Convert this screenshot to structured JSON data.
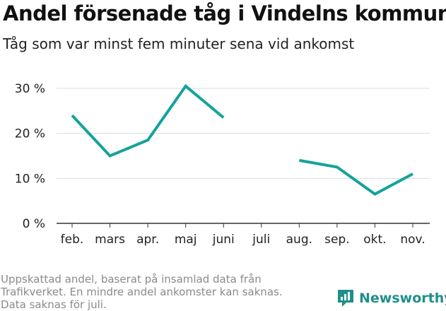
{
  "chart_data": {
    "type": "line",
    "title": "Andel försenade tåg i Vindelns kommun",
    "subtitle": "Tåg som var minst fem minuter sena vid ankomst",
    "categories": [
      "feb.",
      "mars",
      "apr.",
      "maj",
      "juni",
      "juli",
      "aug.",
      "sep.",
      "okt.",
      "nov."
    ],
    "series": [
      {
        "values": [
          24,
          15,
          18.5,
          30.5,
          23.5,
          null,
          14,
          12.5,
          6.5,
          11
        ]
      }
    ],
    "ylim": [
      0,
      30
    ],
    "yticks": [
      0,
      10,
      20,
      30
    ],
    "ytick_labels": [
      "0 %",
      "10 %",
      "20 %",
      "30 %"
    ],
    "grid": true,
    "colors": {
      "line": "#14a39b",
      "grid": "#dcdcdc",
      "axis": "#333333"
    }
  },
  "footnote": [
    "Uppskattad andel, baserat på insamlad data från",
    "Trafikverket. En mindre andel ankomster kan saknas.",
    "Data saknas för juli."
  ],
  "brand": {
    "name": "Newsworthy",
    "icon": "newsworthy-logo-icon",
    "color": "#1f8f8a"
  }
}
